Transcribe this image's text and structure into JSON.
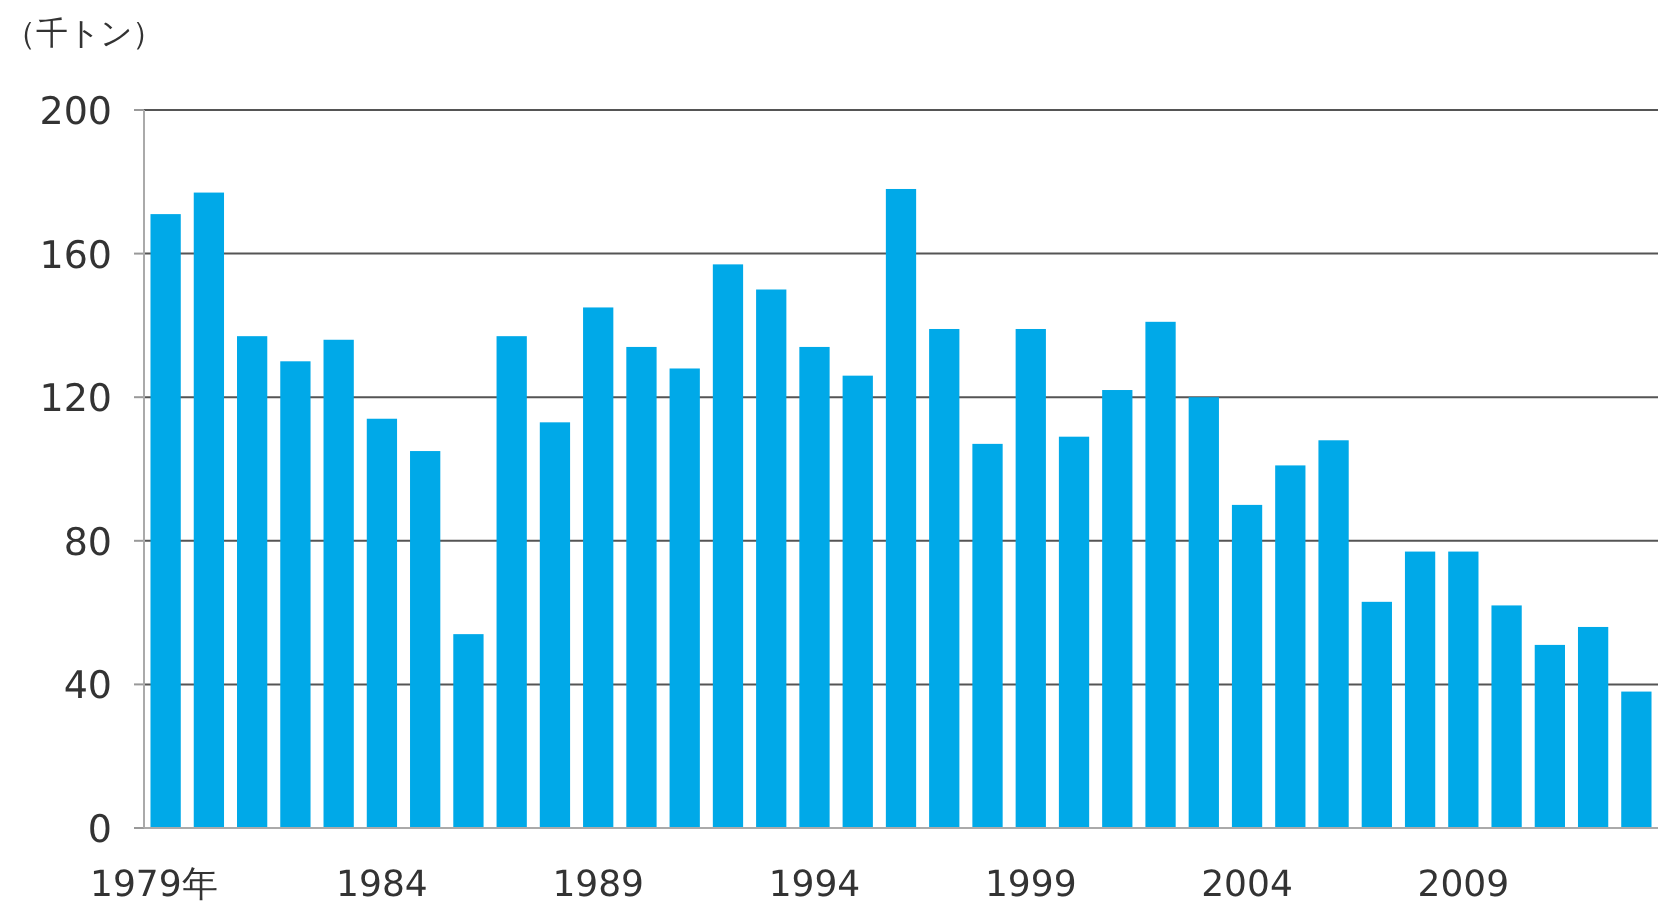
{
  "chart_data": {
    "type": "bar",
    "ylabel": "（千トン）",
    "categories": [
      "1979年",
      null,
      null,
      null,
      null,
      "1984",
      null,
      null,
      null,
      null,
      "1989",
      null,
      null,
      null,
      null,
      "1994",
      null,
      null,
      null,
      null,
      "1999",
      null,
      null,
      null,
      null,
      "2004",
      null,
      null,
      null,
      null,
      "2009",
      null,
      null,
      null,
      null
    ],
    "values": [
      171,
      177,
      137,
      130,
      136,
      114,
      105,
      54,
      137,
      113,
      145,
      134,
      128,
      157,
      150,
      134,
      126,
      178,
      139,
      107,
      139,
      109,
      122,
      141,
      120,
      90,
      101,
      108,
      63,
      77,
      77,
      62,
      51,
      56,
      38
    ],
    "color": "#00a9e8",
    "ylim": [
      0,
      200
    ],
    "yticks": [
      0,
      40,
      80,
      120,
      160,
      200
    ],
    "grid": "y"
  }
}
